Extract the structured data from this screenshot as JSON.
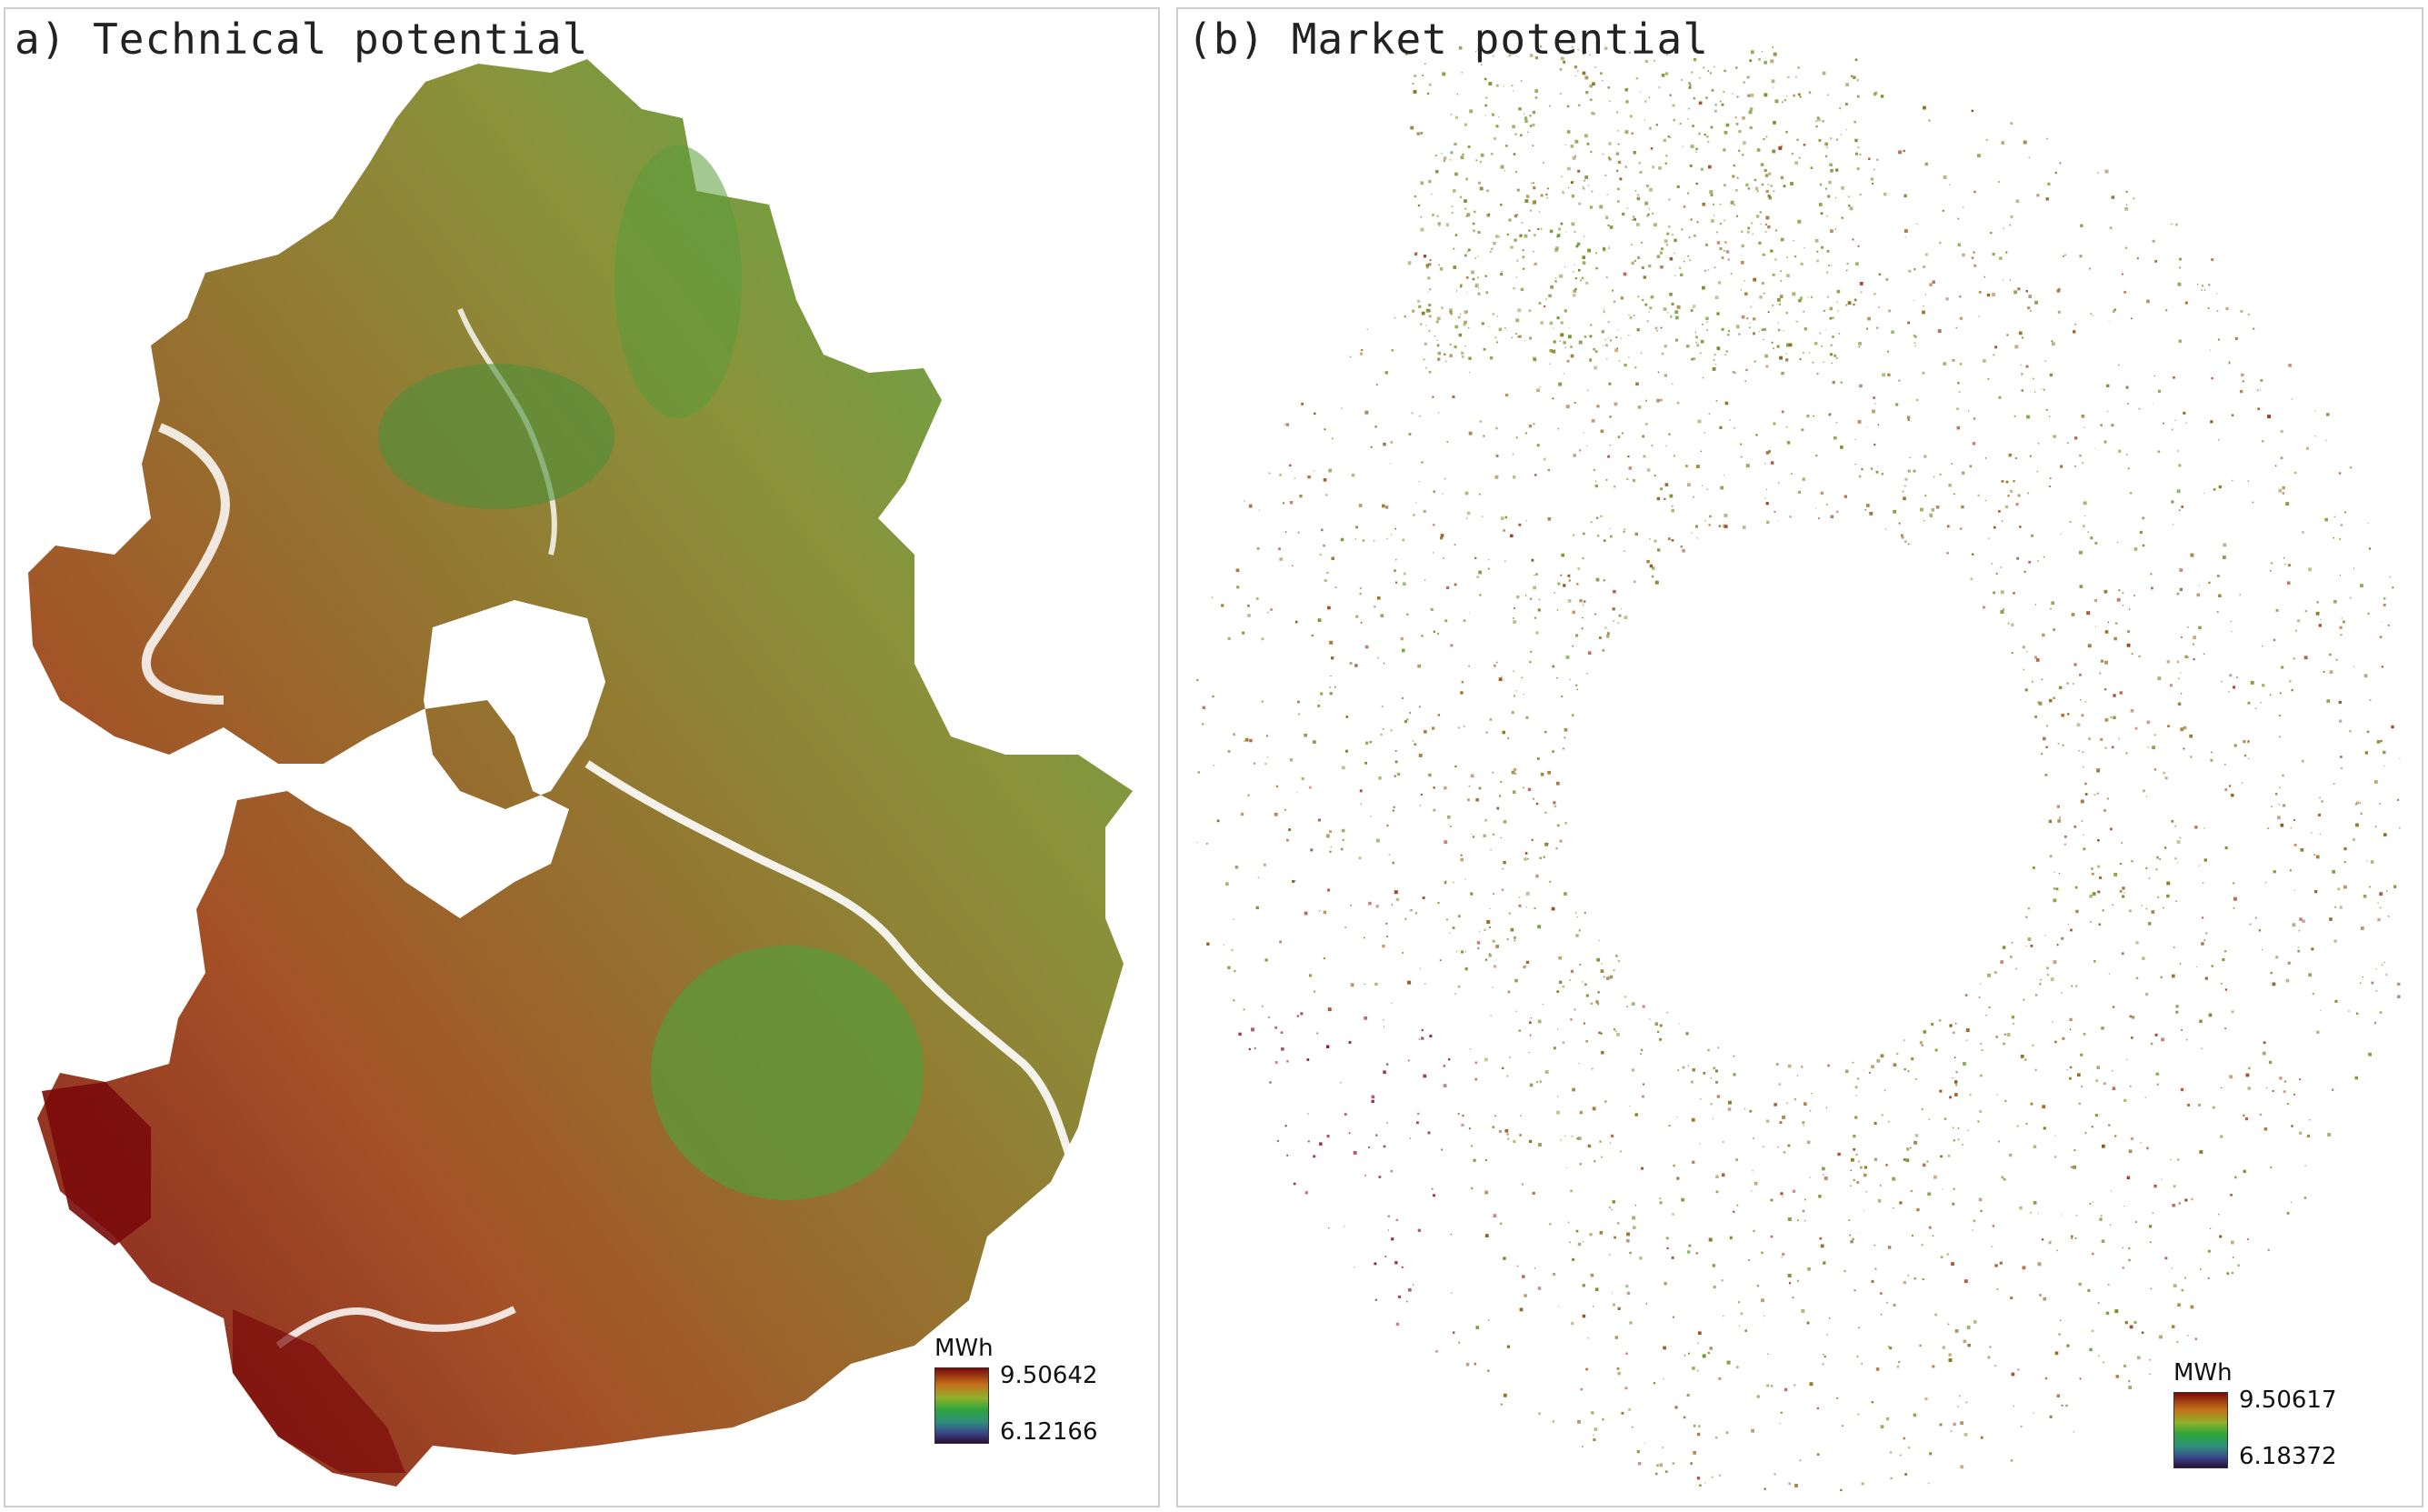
{
  "panels": [
    {
      "title": "a) Technical potential",
      "legend": {
        "unit": "MWh",
        "max": "9.50642",
        "min": "6.12166"
      }
    },
    {
      "title": "(b) Market potential",
      "legend": {
        "unit": "MWh",
        "max": "9.50617",
        "min": "6.18372"
      }
    }
  ],
  "colors": {
    "ramp": [
      "#7a0a0a",
      "#a23a14",
      "#8a6a1e",
      "#7f8a2a",
      "#5f9a35",
      "#3f8f5a",
      "#2e6f7c",
      "#3a2f6a",
      "#2a0f3a"
    ],
    "frame": "#cfcfcf"
  }
}
